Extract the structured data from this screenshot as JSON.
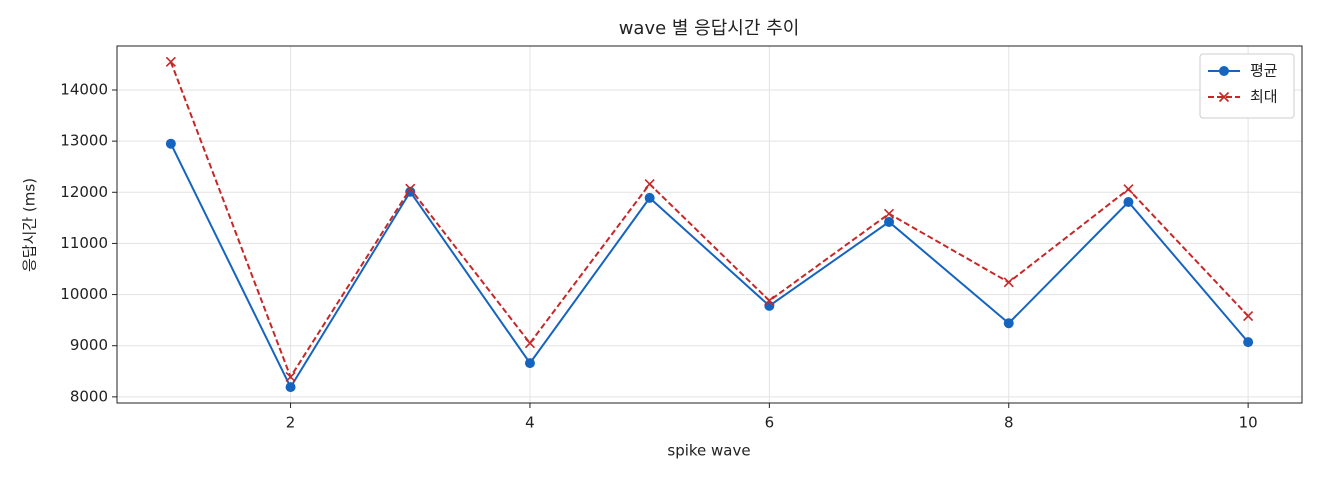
{
  "chart_data": {
    "type": "line",
    "title": "wave 별 응답시간 추이",
    "x_label": "spike wave",
    "y_label": "응답시간 (ms)",
    "x": [
      1,
      2,
      3,
      4,
      5,
      6,
      7,
      8,
      9,
      10
    ],
    "series": [
      {
        "name": "평균",
        "color": "#1565c0",
        "marker": "o",
        "linestyle": "solid",
        "values": [
          12950,
          8190,
          12010,
          8660,
          11890,
          9780,
          11420,
          9440,
          11810,
          9070
        ]
      },
      {
        "name": "최대",
        "color": "#c62828",
        "marker": "x",
        "linestyle": "dashed",
        "values": [
          14550,
          8390,
          12070,
          9050,
          12160,
          9880,
          11580,
          10240,
          12060,
          9580
        ]
      }
    ],
    "xlim": [
      0.55,
      10.45
    ],
    "ylim": [
      7880,
      14860
    ],
    "xticks": [
      2,
      4,
      6,
      8,
      10
    ],
    "yticks": [
      8000,
      9000,
      10000,
      11000,
      12000,
      13000,
      14000
    ],
    "grid": true,
    "legend": "upper right"
  }
}
